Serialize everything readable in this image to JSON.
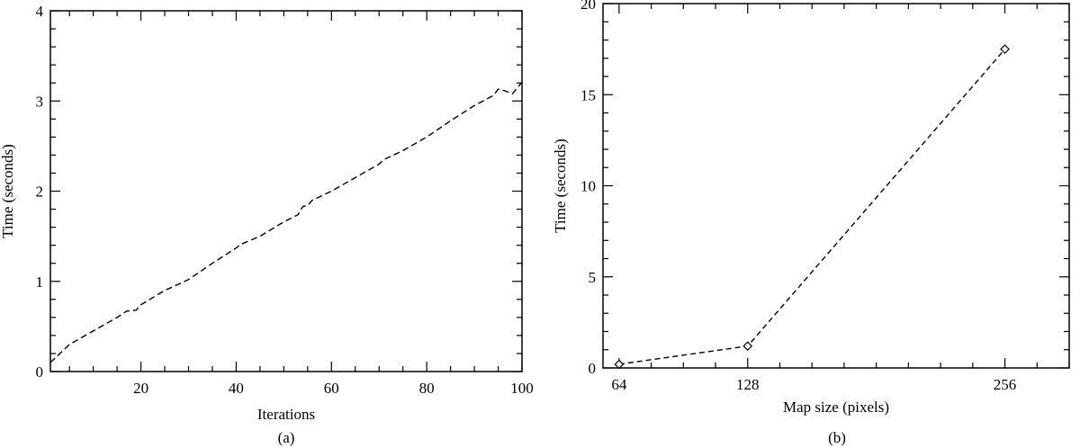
{
  "chart_data": [
    {
      "type": "line",
      "caption": "(a)",
      "xlabel": "Iterations",
      "ylabel": "Time (seconds)",
      "xlim": [
        1,
        100
      ],
      "ylim": [
        0,
        4
      ],
      "xticks": [
        20,
        40,
        60,
        80,
        100
      ],
      "yticks": [
        0,
        1,
        2,
        3,
        4
      ],
      "grid": false,
      "line_style": "dashed",
      "series": [
        {
          "x": [
            1,
            5,
            10,
            15,
            17,
            19,
            20,
            25,
            28,
            30,
            35,
            40,
            41,
            45,
            50,
            53,
            54,
            55,
            56,
            60,
            65,
            70,
            71,
            75,
            80,
            85,
            90,
            94,
            95,
            96,
            98,
            100
          ],
          "y": [
            0.1,
            0.3,
            0.45,
            0.6,
            0.67,
            0.68,
            0.74,
            0.9,
            0.97,
            1.02,
            1.2,
            1.37,
            1.41,
            1.5,
            1.66,
            1.74,
            1.83,
            1.84,
            1.9,
            2.0,
            2.15,
            2.3,
            2.35,
            2.45,
            2.6,
            2.78,
            2.95,
            3.06,
            3.13,
            3.12,
            3.08,
            3.21
          ]
        }
      ]
    },
    {
      "type": "line",
      "caption": "(b)",
      "xlabel": "Map size (pixels)",
      "ylabel": "Time (seconds)",
      "xlim": [
        56,
        288
      ],
      "ylim": [
        0,
        20
      ],
      "xticks": [
        64,
        128,
        256
      ],
      "yticks": [
        0,
        5,
        10,
        15,
        20
      ],
      "grid": false,
      "line_style": "dashed",
      "marker": "diamond",
      "series": [
        {
          "x": [
            64,
            128,
            256
          ],
          "y": [
            0.2,
            1.2,
            17.5
          ]
        }
      ]
    }
  ]
}
